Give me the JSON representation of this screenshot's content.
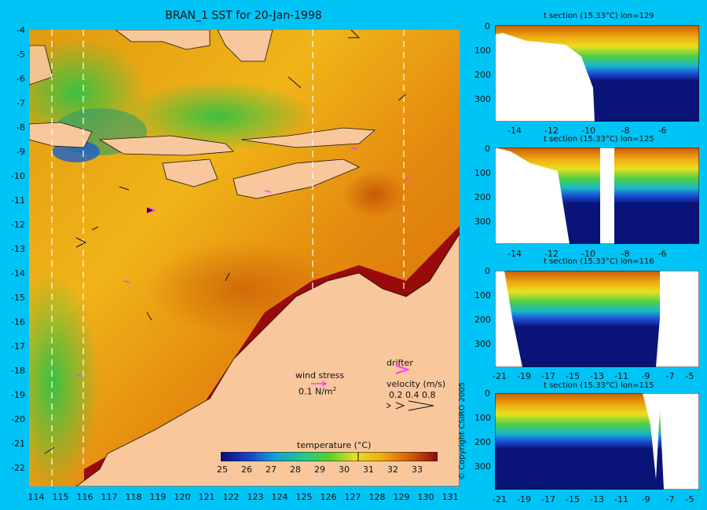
{
  "map": {
    "title": "BRAN_1 SST for 20-Jan-1998",
    "y_ticks": [
      "-4",
      "-5",
      "-6",
      "-7",
      "-8",
      "-9",
      "-10",
      "-11",
      "-12",
      "-13",
      "-14",
      "-15",
      "-16",
      "-17",
      "-18",
      "-19",
      "-20",
      "-21",
      "-22"
    ],
    "x_ticks": [
      "114",
      "115",
      "116",
      "117",
      "118",
      "119",
      "120",
      "121",
      "122",
      "123",
      "124",
      "125",
      "126",
      "127",
      "128",
      "129",
      "130",
      "131"
    ],
    "legend": {
      "wind_stress_label": "wind stress",
      "wind_stress_value": "0.1 N/m",
      "wind_stress_sup": "2",
      "drifter_label": "drifter",
      "velocity_label": "velocity (m/s)",
      "velocity_values": "0.2 0.4 0.8"
    },
    "colorbar": {
      "title": "temperature (°C)",
      "ticks": [
        "25",
        "26",
        "27",
        "28",
        "29",
        "30",
        "31",
        "32",
        "33"
      ]
    },
    "colors": {
      "background": "#00c4f6",
      "land": "#f9c79c",
      "drifter": "#ff3cff"
    }
  },
  "sections": [
    {
      "title": "t section (15.33°C) lon=129",
      "x_ticks": [
        "-14",
        "-12",
        "-10",
        "-8",
        "-6"
      ],
      "y_ticks": [
        "0",
        "100",
        "200",
        "300"
      ]
    },
    {
      "title": "t section (15.33°C) lon=125",
      "x_ticks": [
        "-14",
        "-12",
        "-10",
        "-8",
        "-6"
      ],
      "y_ticks": [
        "0",
        "100",
        "200",
        "300"
      ]
    },
    {
      "title": "t section (15.33°C) lon=116",
      "x_ticks": [
        "-21",
        "-19",
        "-17",
        "-15",
        "-13",
        "-11",
        "-9",
        "-7",
        "-5"
      ],
      "y_ticks": [
        "0",
        "100",
        "200",
        "300"
      ]
    },
    {
      "title": "t section (15.33°C) lon=115",
      "x_ticks": [
        "-21",
        "-19",
        "-17",
        "-15",
        "-13",
        "-11",
        "-9",
        "-7",
        "-5"
      ],
      "y_ticks": [
        "0",
        "100",
        "200",
        "300"
      ]
    }
  ],
  "copyright": "© Copyright CSIRO 2005"
}
